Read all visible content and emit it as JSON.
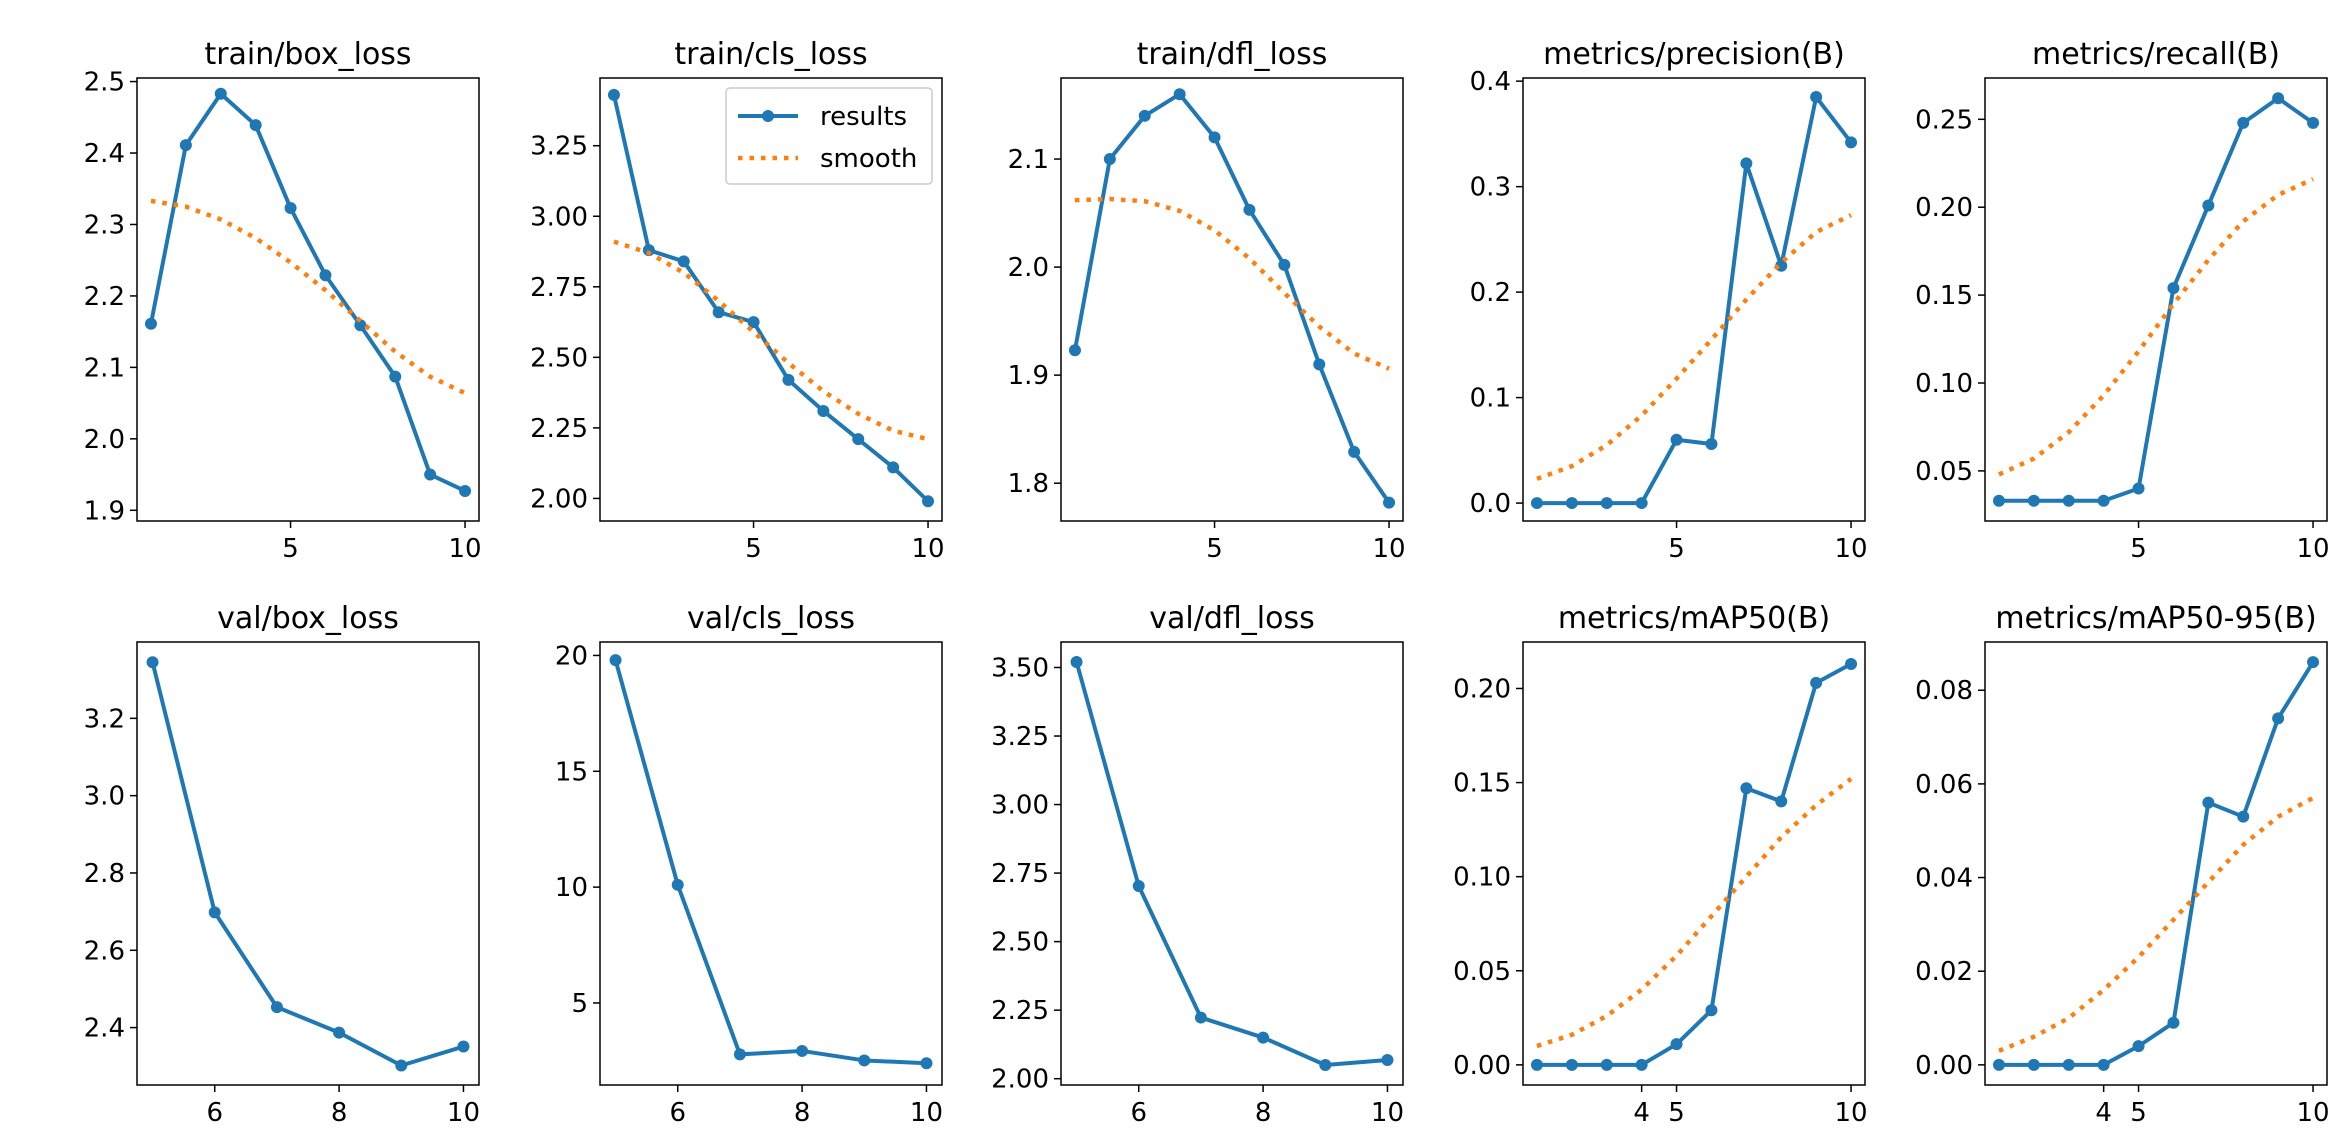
{
  "colors": {
    "results": "#1f77b4",
    "smooth": "#ff7f0e",
    "axes": "#000000"
  },
  "legend": {
    "results_label": "results",
    "smooth_label": "smooth",
    "placement": "top-right of train/cls_loss panel"
  },
  "chart_data": [
    {
      "type": "line",
      "title": "train/box_loss",
      "x": [
        1,
        2,
        3,
        4,
        5,
        6,
        7,
        8,
        9,
        10
      ],
      "xlim": [
        0.6,
        10.4
      ],
      "xticks": [
        5,
        10
      ],
      "ylim": [
        1.885,
        2.505
      ],
      "yticks": [
        1.9,
        2.0,
        2.1,
        2.2,
        2.3,
        2.4,
        2.5
      ],
      "ytick_labels": [
        "1.9",
        "2.0",
        "2.1",
        "2.2",
        "2.3",
        "2.4",
        "2.5"
      ],
      "series": [
        {
          "name": "results",
          "style": "line-dot",
          "values": [
            2.161,
            2.411,
            2.483,
            2.439,
            2.323,
            2.229,
            2.159,
            2.087,
            1.95,
            1.927
          ]
        },
        {
          "name": "smooth",
          "style": "dotted",
          "values": [
            2.333,
            2.325,
            2.307,
            2.281,
            2.247,
            2.208,
            2.165,
            2.122,
            2.087,
            2.064
          ]
        }
      ]
    },
    {
      "type": "line",
      "title": "train/cls_loss",
      "x": [
        1,
        2,
        3,
        4,
        5,
        6,
        7,
        8,
        9,
        10
      ],
      "xlim": [
        0.6,
        10.4
      ],
      "xticks": [
        5,
        10
      ],
      "ylim": [
        1.92,
        3.49
      ],
      "yticks": [
        2.0,
        2.25,
        2.5,
        2.75,
        3.0,
        3.25
      ],
      "ytick_labels": [
        "2.00",
        "2.25",
        "2.50",
        "2.75",
        "3.00",
        "3.25"
      ],
      "legend": true,
      "series": [
        {
          "name": "results",
          "style": "line-dot",
          "values": [
            3.43,
            2.88,
            2.84,
            2.66,
            2.625,
            2.42,
            2.31,
            2.21,
            2.11,
            1.99
          ]
        },
        {
          "name": "smooth",
          "style": "dotted",
          "values": [
            2.91,
            2.87,
            2.8,
            2.7,
            2.59,
            2.48,
            2.38,
            2.3,
            2.24,
            2.21
          ]
        }
      ]
    },
    {
      "type": "line",
      "title": "train/dfl_loss",
      "x": [
        1,
        2,
        3,
        4,
        5,
        6,
        7,
        8,
        9,
        10
      ],
      "xlim": [
        0.6,
        10.4
      ],
      "xticks": [
        5,
        10
      ],
      "ylim": [
        1.765,
        2.175
      ],
      "yticks": [
        1.8,
        1.9,
        2.0,
        2.1
      ],
      "ytick_labels": [
        "1.8",
        "1.9",
        "2.0",
        "2.1"
      ],
      "series": [
        {
          "name": "results",
          "style": "line-dot",
          "values": [
            1.923,
            2.1,
            2.14,
            2.16,
            2.12,
            2.053,
            2.002,
            1.91,
            1.829,
            1.782
          ]
        },
        {
          "name": "smooth",
          "style": "dotted",
          "values": [
            2.062,
            2.063,
            2.061,
            2.052,
            2.034,
            2.008,
            1.976,
            1.945,
            1.92,
            1.906
          ]
        }
      ]
    },
    {
      "type": "line",
      "title": "metrics/precision(B)",
      "x": [
        1,
        2,
        3,
        4,
        5,
        6,
        7,
        8,
        9,
        10
      ],
      "xlim": [
        0.6,
        10.4
      ],
      "xticks": [
        5,
        10
      ],
      "ylim": [
        -0.017,
        0.403
      ],
      "yticks": [
        0.0,
        0.1,
        0.2,
        0.3,
        0.4
      ],
      "ytick_labels": [
        "0.0",
        "0.1",
        "0.2",
        "0.3",
        "0.4"
      ],
      "series": [
        {
          "name": "results",
          "style": "line-dot",
          "values": [
            0,
            0,
            0,
            0,
            0.06,
            0.056,
            0.322,
            0.225,
            0.385,
            0.342
          ]
        },
        {
          "name": "smooth",
          "style": "dotted",
          "values": [
            0.023,
            0.035,
            0.055,
            0.083,
            0.118,
            0.155,
            0.193,
            0.228,
            0.257,
            0.273
          ]
        }
      ]
    },
    {
      "type": "line",
      "title": "metrics/recall(B)",
      "x": [
        1,
        2,
        3,
        4,
        5,
        6,
        7,
        8,
        9,
        10
      ],
      "xlim": [
        0.6,
        10.4
      ],
      "xticks": [
        5,
        10
      ],
      "ylim": [
        0.0215,
        0.2735
      ],
      "yticks": [
        0.05,
        0.1,
        0.15,
        0.2,
        0.25
      ],
      "ytick_labels": [
        "0.05",
        "0.10",
        "0.15",
        "0.20",
        "0.25"
      ],
      "series": [
        {
          "name": "results",
          "style": "line-dot",
          "values": [
            0.033,
            0.033,
            0.033,
            0.033,
            0.04,
            0.154,
            0.201,
            0.248,
            0.262,
            0.248
          ]
        },
        {
          "name": "smooth",
          "style": "dotted",
          "values": [
            0.048,
            0.057,
            0.072,
            0.093,
            0.118,
            0.145,
            0.17,
            0.192,
            0.207,
            0.216
          ]
        }
      ]
    },
    {
      "type": "line",
      "title": "val/box_loss",
      "x": [
        5,
        6,
        7,
        8,
        9,
        10
      ],
      "xlim": [
        4.75,
        10.25
      ],
      "xticks": [
        6,
        8,
        10
      ],
      "ylim": [
        2.2515,
        3.3975
      ],
      "yticks": [
        2.4,
        2.6,
        2.8,
        3.0,
        3.2
      ],
      "ytick_labels": [
        "2.4",
        "2.6",
        "2.8",
        "3.0",
        "3.2"
      ],
      "series": [
        {
          "name": "results",
          "style": "line-dot",
          "values": [
            3.345,
            2.698,
            2.453,
            2.387,
            2.302,
            2.351
          ]
        }
      ]
    },
    {
      "type": "line",
      "title": "val/cls_loss",
      "x": [
        5,
        6,
        7,
        8,
        9,
        10
      ],
      "xlim": [
        4.75,
        10.25
      ],
      "xticks": [
        6,
        8,
        10
      ],
      "ylim": [
        1.46,
        20.58
      ],
      "yticks": [
        5,
        10,
        15,
        20
      ],
      "ytick_labels": [
        "5",
        "10",
        "15",
        "20"
      ],
      "series": [
        {
          "name": "results",
          "style": "line-dot",
          "values": [
            19.8,
            10.1,
            2.78,
            2.93,
            2.52,
            2.4
          ]
        }
      ]
    },
    {
      "type": "line",
      "title": "val/dfl_loss",
      "x": [
        5,
        6,
        7,
        8,
        9,
        10
      ],
      "xlim": [
        4.75,
        10.25
      ],
      "xticks": [
        6,
        8,
        10
      ],
      "ylim": [
        1.977,
        3.593
      ],
      "yticks": [
        2.0,
        2.25,
        2.5,
        2.75,
        3.0,
        3.25,
        3.5
      ],
      "ytick_labels": [
        "2.00",
        "2.25",
        "2.50",
        "2.75",
        "3.00",
        "3.25",
        "3.50"
      ],
      "series": [
        {
          "name": "results",
          "style": "line-dot",
          "values": [
            3.52,
            2.703,
            2.223,
            2.15,
            2.05,
            2.068
          ]
        }
      ]
    },
    {
      "type": "line",
      "title": "metrics/mAP50(B)",
      "x": [
        1,
        2,
        3,
        4,
        5,
        6,
        7,
        8,
        9,
        10
      ],
      "xlim": [
        0.6,
        10.4
      ],
      "xticks": [
        4,
        5,
        10
      ],
      "xtick_labels": [
        "4",
        "5",
        "10"
      ],
      "ylim": [
        -0.0107,
        0.2247
      ],
      "yticks": [
        0.0,
        0.05,
        0.1,
        0.15,
        0.2
      ],
      "ytick_labels": [
        "0.00",
        "0.05",
        "0.10",
        "0.15",
        "0.20"
      ],
      "series": [
        {
          "name": "results",
          "style": "line-dot",
          "values": [
            0,
            0,
            0,
            0,
            0.011,
            0.029,
            0.147,
            0.14,
            0.203,
            0.213
          ]
        },
        {
          "name": "smooth",
          "style": "dotted",
          "values": [
            0.01,
            0.016,
            0.026,
            0.04,
            0.058,
            0.079,
            0.1,
            0.121,
            0.138,
            0.152
          ]
        }
      ]
    },
    {
      "type": "line",
      "title": "metrics/mAP50-95(B)",
      "x": [
        1,
        2,
        3,
        4,
        5,
        6,
        7,
        8,
        9,
        10
      ],
      "xlim": [
        0.6,
        10.4
      ],
      "xticks": [
        4,
        5,
        10
      ],
      "xtick_labels": [
        "4",
        "5",
        "10"
      ],
      "ylim": [
        -0.0043,
        0.0903
      ],
      "yticks": [
        0.0,
        0.02,
        0.04,
        0.06,
        0.08
      ],
      "ytick_labels": [
        "0.00",
        "0.02",
        "0.04",
        "0.06",
        "0.08"
      ],
      "series": [
        {
          "name": "results",
          "style": "line-dot",
          "values": [
            0,
            0,
            0,
            0,
            0.004,
            0.009,
            0.056,
            0.053,
            0.074,
            0.086
          ]
        },
        {
          "name": "smooth",
          "style": "dotted",
          "values": [
            0.003,
            0.006,
            0.01,
            0.016,
            0.023,
            0.031,
            0.039,
            0.047,
            0.053,
            0.057
          ]
        }
      ]
    }
  ]
}
